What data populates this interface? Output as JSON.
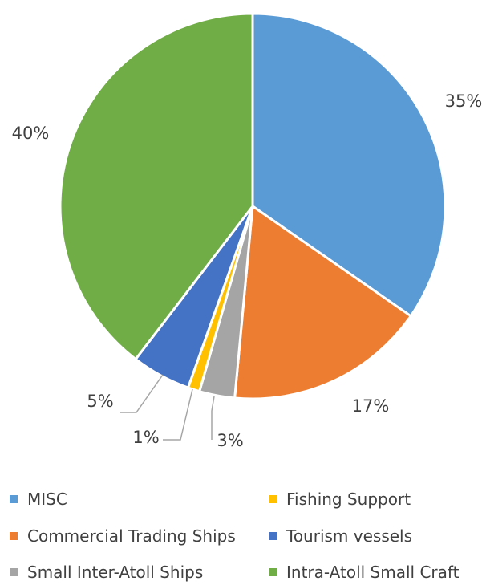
{
  "chart_data": {
    "type": "pie",
    "title": "",
    "categories": [
      "MISC",
      "Commercial Trading Ships",
      "Small Inter-Atoll Ships",
      "Fishing Support",
      "Tourism vessels",
      "Intra-Atoll Small Craft"
    ],
    "values": [
      35,
      17,
      3,
      1,
      5,
      40
    ],
    "labels": [
      "35%",
      "17%",
      "3%",
      "1%",
      "5%",
      "40%"
    ],
    "colors": [
      "#5B9BD5",
      "#ED7D31",
      "#A5A5A5",
      "#FFC000",
      "#4472C4",
      "#70AD47"
    ],
    "legend": {
      "position": "bottom",
      "entries": [
        "MISC",
        "Fishing Support",
        "Commercial Trading Ships",
        "Tourism vessels",
        "Small Inter-Atoll Ships",
        "Intra-Atoll Small Craft"
      ]
    }
  }
}
